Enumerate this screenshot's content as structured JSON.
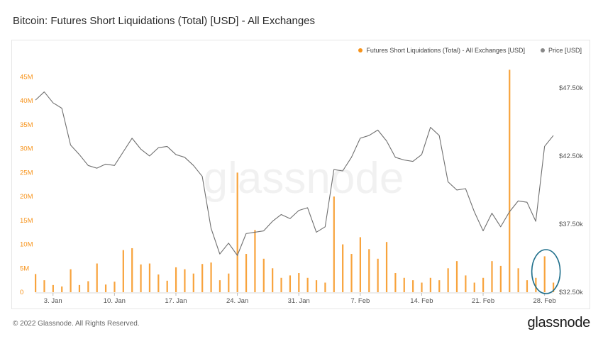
{
  "title": "Bitcoin: Futures Short Liquidations (Total) [USD] - All Exchanges",
  "watermark": "glassnode",
  "footer": {
    "copyright": "© 2022 Glassnode. All Rights Reserved.",
    "logo": "glassnode"
  },
  "colors": {
    "liquidations": "#f7931a",
    "price": "#6f6f6f",
    "highlight": "#1f6f8b"
  },
  "legend": {
    "liquidations_label": "Futures Short Liquidations (Total) - All Exchanges [USD]",
    "price_label": "Price [USD]"
  },
  "chart_data": {
    "type": "bar+line",
    "title": "Bitcoin: Futures Short Liquidations (Total) [USD] - All Exchanges",
    "x_ticks": [
      {
        "label": "3. Jan",
        "date": "2022-01-03"
      },
      {
        "label": "10. Jan",
        "date": "2022-01-10"
      },
      {
        "label": "17. Jan",
        "date": "2022-01-17"
      },
      {
        "label": "24. Jan",
        "date": "2022-01-24"
      },
      {
        "label": "31. Jan",
        "date": "2022-01-31"
      },
      {
        "label": "7. Feb",
        "date": "2022-02-07"
      },
      {
        "label": "14. Feb",
        "date": "2022-02-14"
      },
      {
        "label": "21. Feb",
        "date": "2022-02-21"
      },
      {
        "label": "28. Feb",
        "date": "2022-02-28"
      }
    ],
    "x_range": [
      "2022-01-01",
      "2022-03-01"
    ],
    "y_left": {
      "range": [
        0,
        47000000
      ],
      "ticks": [
        {
          "label": "0",
          "value": 0
        },
        {
          "label": "5M",
          "value": 5000000
        },
        {
          "label": "10M",
          "value": 10000000
        },
        {
          "label": "15M",
          "value": 15000000
        },
        {
          "label": "20M",
          "value": 20000000
        },
        {
          "label": "25M",
          "value": 25000000
        },
        {
          "label": "30M",
          "value": 30000000
        },
        {
          "label": "35M",
          "value": 35000000
        },
        {
          "label": "40M",
          "value": 40000000
        },
        {
          "label": "45M",
          "value": 45000000
        }
      ]
    },
    "y_right": {
      "range": [
        32500,
        49000
      ],
      "ticks": [
        {
          "label": "$32.50k",
          "value": 32500
        },
        {
          "label": "$37.50k",
          "value": 37500
        },
        {
          "label": "$42.50k",
          "value": 42500
        },
        {
          "label": "$47.50k",
          "value": 47500
        }
      ]
    },
    "series": [
      {
        "name": "Futures Short Liquidations (Total) - All Exchanges [USD]",
        "type": "bar",
        "axis": "left",
        "points": [
          [
            "2022-01-01",
            3800000
          ],
          [
            "2022-01-02",
            2500000
          ],
          [
            "2022-01-03",
            1500000
          ],
          [
            "2022-01-04",
            1200000
          ],
          [
            "2022-01-05",
            4800000
          ],
          [
            "2022-01-06",
            1500000
          ],
          [
            "2022-01-07",
            2300000
          ],
          [
            "2022-01-08",
            6000000
          ],
          [
            "2022-01-09",
            1600000
          ],
          [
            "2022-01-10",
            2200000
          ],
          [
            "2022-01-11",
            8800000
          ],
          [
            "2022-01-12",
            9200000
          ],
          [
            "2022-01-13",
            5800000
          ],
          [
            "2022-01-14",
            6000000
          ],
          [
            "2022-01-15",
            3700000
          ],
          [
            "2022-01-16",
            2400000
          ],
          [
            "2022-01-17",
            5200000
          ],
          [
            "2022-01-18",
            4800000
          ],
          [
            "2022-01-19",
            3900000
          ],
          [
            "2022-01-20",
            5900000
          ],
          [
            "2022-01-21",
            6200000
          ],
          [
            "2022-01-22",
            2500000
          ],
          [
            "2022-01-23",
            3900000
          ],
          [
            "2022-01-24",
            25000000
          ],
          [
            "2022-01-25",
            8000000
          ],
          [
            "2022-01-26",
            13000000
          ],
          [
            "2022-01-27",
            7000000
          ],
          [
            "2022-01-28",
            5000000
          ],
          [
            "2022-01-29",
            3000000
          ],
          [
            "2022-01-30",
            3500000
          ],
          [
            "2022-01-31",
            4000000
          ],
          [
            "2022-02-01",
            3000000
          ],
          [
            "2022-02-02",
            2500000
          ],
          [
            "2022-02-03",
            2000000
          ],
          [
            "2022-02-04",
            20000000
          ],
          [
            "2022-02-05",
            10000000
          ],
          [
            "2022-02-06",
            8000000
          ],
          [
            "2022-02-07",
            11500000
          ],
          [
            "2022-02-08",
            9000000
          ],
          [
            "2022-02-09",
            7000000
          ],
          [
            "2022-02-10",
            10500000
          ],
          [
            "2022-02-11",
            4000000
          ],
          [
            "2022-02-12",
            3000000
          ],
          [
            "2022-02-13",
            2500000
          ],
          [
            "2022-02-14",
            2000000
          ],
          [
            "2022-02-15",
            3000000
          ],
          [
            "2022-02-16",
            2500000
          ],
          [
            "2022-02-17",
            5000000
          ],
          [
            "2022-02-18",
            6500000
          ],
          [
            "2022-02-19",
            3500000
          ],
          [
            "2022-02-20",
            2000000
          ],
          [
            "2022-02-21",
            3000000
          ],
          [
            "2022-02-22",
            6500000
          ],
          [
            "2022-02-23",
            5500000
          ],
          [
            "2022-02-24",
            46500000
          ],
          [
            "2022-02-25",
            5000000
          ],
          [
            "2022-02-26",
            2500000
          ],
          [
            "2022-02-27",
            3000000
          ],
          [
            "2022-02-28",
            7500000
          ],
          [
            "2022-03-01",
            2000000
          ]
        ]
      },
      {
        "name": "Price [USD]",
        "type": "line",
        "axis": "right",
        "points": [
          [
            "2022-01-01",
            46600
          ],
          [
            "2022-01-02",
            47200
          ],
          [
            "2022-01-03",
            46400
          ],
          [
            "2022-01-04",
            46000
          ],
          [
            "2022-01-05",
            43300
          ],
          [
            "2022-01-06",
            42600
          ],
          [
            "2022-01-07",
            41800
          ],
          [
            "2022-01-08",
            41600
          ],
          [
            "2022-01-09",
            41900
          ],
          [
            "2022-01-10",
            41800
          ],
          [
            "2022-01-11",
            42800
          ],
          [
            "2022-01-12",
            43800
          ],
          [
            "2022-01-13",
            43000
          ],
          [
            "2022-01-14",
            42500
          ],
          [
            "2022-01-15",
            43100
          ],
          [
            "2022-01-16",
            43200
          ],
          [
            "2022-01-17",
            42600
          ],
          [
            "2022-01-18",
            42400
          ],
          [
            "2022-01-19",
            41800
          ],
          [
            "2022-01-20",
            41000
          ],
          [
            "2022-01-21",
            37200
          ],
          [
            "2022-01-22",
            35300
          ],
          [
            "2022-01-23",
            36100
          ],
          [
            "2022-01-24",
            35200
          ],
          [
            "2022-01-25",
            36800
          ],
          [
            "2022-01-26",
            36900
          ],
          [
            "2022-01-27",
            37000
          ],
          [
            "2022-01-28",
            37700
          ],
          [
            "2022-01-29",
            38200
          ],
          [
            "2022-01-30",
            37900
          ],
          [
            "2022-01-31",
            38500
          ],
          [
            "2022-02-01",
            38700
          ],
          [
            "2022-02-02",
            36900
          ],
          [
            "2022-02-03",
            37300
          ],
          [
            "2022-02-04",
            41500
          ],
          [
            "2022-02-05",
            41400
          ],
          [
            "2022-02-06",
            42400
          ],
          [
            "2022-02-07",
            43800
          ],
          [
            "2022-02-08",
            44000
          ],
          [
            "2022-02-09",
            44400
          ],
          [
            "2022-02-10",
            43600
          ],
          [
            "2022-02-11",
            42400
          ],
          [
            "2022-02-12",
            42200
          ],
          [
            "2022-02-13",
            42100
          ],
          [
            "2022-02-14",
            42600
          ],
          [
            "2022-02-15",
            44600
          ],
          [
            "2022-02-16",
            44000
          ],
          [
            "2022-02-17",
            40600
          ],
          [
            "2022-02-18",
            40000
          ],
          [
            "2022-02-19",
            40100
          ],
          [
            "2022-02-20",
            38400
          ],
          [
            "2022-02-21",
            37000
          ],
          [
            "2022-02-22",
            38300
          ],
          [
            "2022-02-23",
            37300
          ],
          [
            "2022-02-24",
            38400
          ],
          [
            "2022-02-25",
            39200
          ],
          [
            "2022-02-26",
            39100
          ],
          [
            "2022-02-27",
            37700
          ],
          [
            "2022-02-28",
            43200
          ],
          [
            "2022-03-01",
            44000
          ]
        ]
      }
    ],
    "annotations": [
      {
        "type": "ellipse-highlight",
        "around_date": "2022-02-28",
        "color": "#1f6f8b"
      }
    ],
    "grid": false,
    "legend_position": "top-right"
  }
}
